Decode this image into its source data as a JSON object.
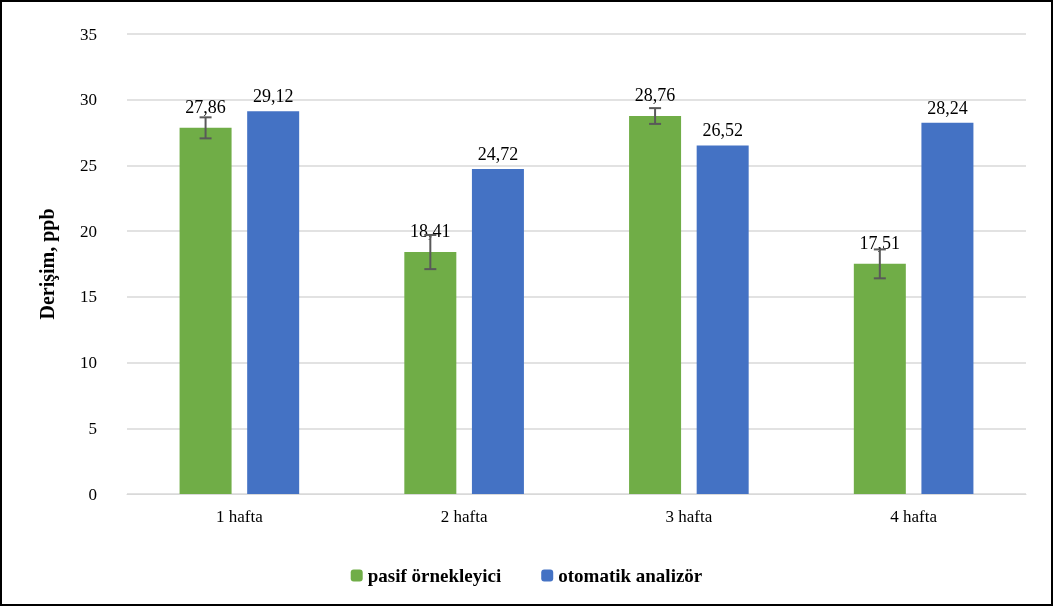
{
  "chart_data": {
    "type": "bar",
    "ylabel": "Derişim, ppb",
    "categories": [
      "1 hafta",
      "2 hafta",
      "3 hafta",
      "4 hafta"
    ],
    "series": [
      {
        "name": "pasif örnekleyici",
        "color": "#70ad47",
        "values": [
          27.86,
          18.41,
          28.76,
          17.51
        ],
        "errors": [
          0.8,
          1.3,
          0.6,
          1.1
        ],
        "value_labels": [
          "27,86",
          "18,41",
          "28,76",
          "17,51"
        ]
      },
      {
        "name": "otomatik analizör",
        "color": "#4472c4",
        "values": [
          29.12,
          24.72,
          26.52,
          28.24
        ],
        "value_labels": [
          "29,12",
          "24,72",
          "26,52",
          "28,24"
        ]
      }
    ],
    "ylim": [
      0,
      35
    ],
    "yticks": [
      0,
      5,
      10,
      15,
      20,
      25,
      30,
      35
    ],
    "grid": "y",
    "legend": "bottom"
  }
}
